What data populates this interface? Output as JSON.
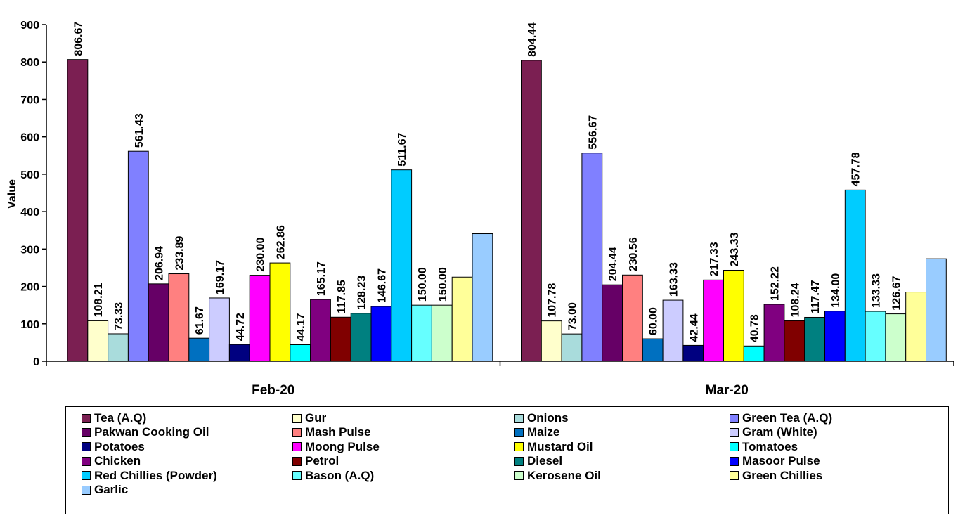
{
  "chart_data": {
    "type": "bar",
    "title": "",
    "ylabel": "Value",
    "xlabel": "",
    "ylim": [
      0,
      900
    ],
    "yticks": [
      "0",
      "100",
      "200",
      "300",
      "400",
      "500",
      "600",
      "700",
      "800",
      "900"
    ],
    "categories": [
      "Feb-20",
      "Mar-20"
    ],
    "legend_position": "bottom",
    "series": [
      {
        "name": "Tea (A.Q)",
        "color": "#7B1F52",
        "values": [
          806.67,
          804.44
        ],
        "labels": [
          "806.67",
          "804.44"
        ]
      },
      {
        "name": "Gur",
        "color": "#FFFFCC",
        "values": [
          108.21,
          107.78
        ],
        "labels": [
          "108.21",
          "107.78"
        ]
      },
      {
        "name": "Onions",
        "color": "#A9DCDC",
        "values": [
          73.33,
          73.0
        ],
        "labels": [
          "73.33",
          "73.00"
        ]
      },
      {
        "name": "Green Tea (A.Q)",
        "color": "#8080FF",
        "values": [
          561.43,
          556.67
        ],
        "labels": [
          "561.43",
          "556.67"
        ]
      },
      {
        "name": "Pakwan Cooking Oil",
        "color": "#660066",
        "values": [
          206.94,
          204.44
        ],
        "labels": [
          "206.94",
          "204.44"
        ]
      },
      {
        "name": "Mash Pulse",
        "color": "#FF8080",
        "values": [
          233.89,
          230.56
        ],
        "labels": [
          "233.89",
          "230.56"
        ]
      },
      {
        "name": "Maize",
        "color": "#0070C0",
        "values": [
          61.67,
          60.0
        ],
        "labels": [
          "61.67",
          "60.00"
        ]
      },
      {
        "name": "Gram (White)",
        "color": "#CCCCFF",
        "values": [
          169.17,
          163.33
        ],
        "labels": [
          "169.17",
          "163.33"
        ]
      },
      {
        "name": "Potatoes",
        "color": "#000080",
        "values": [
          44.72,
          42.44
        ],
        "labels": [
          "44.72",
          "42.44"
        ]
      },
      {
        "name": "Moong Pulse",
        "color": "#FF00FF",
        "values": [
          230.0,
          217.33
        ],
        "labels": [
          "230.00",
          "217.33"
        ]
      },
      {
        "name": "Mustard Oil",
        "color": "#FFFF00",
        "values": [
          262.86,
          243.33
        ],
        "labels": [
          "262.86",
          "243.33"
        ]
      },
      {
        "name": "Tomatoes",
        "color": "#00FFFF",
        "values": [
          44.17,
          40.78
        ],
        "labels": [
          "44.17",
          "40.78"
        ]
      },
      {
        "name": "Chicken",
        "color": "#800080",
        "values": [
          165.17,
          152.22
        ],
        "labels": [
          "165.17",
          "152.22"
        ]
      },
      {
        "name": "Petrol",
        "color": "#800000",
        "values": [
          117.85,
          108.24
        ],
        "labels": [
          "117.85",
          "108.24"
        ]
      },
      {
        "name": "Diesel",
        "color": "#008080",
        "values": [
          128.23,
          117.47
        ],
        "labels": [
          "128.23",
          "117.47"
        ]
      },
      {
        "name": "Masoor Pulse",
        "color": "#0000FF",
        "values": [
          146.67,
          134.0
        ],
        "labels": [
          "146.67",
          "134.00"
        ]
      },
      {
        "name": "Red Chillies (Powder)",
        "color": "#00CCFF",
        "values": [
          511.67,
          457.78
        ],
        "labels": [
          "511.67",
          "457.78"
        ]
      },
      {
        "name": "Bason (A.Q)",
        "color": "#66FFFF",
        "values": [
          150.0,
          133.33
        ],
        "labels": [
          "150.00",
          "133.33"
        ]
      },
      {
        "name": "Kerosene Oil",
        "color": "#CCFFCC",
        "values": [
          150.0,
          126.67
        ],
        "labels": [
          "150.00",
          "126.67"
        ]
      },
      {
        "name": "Green Chillies",
        "color": "#FFFF99",
        "values": [
          225,
          185
        ],
        "labels": [
          "",
          ""
        ]
      },
      {
        "name": "Garlic",
        "color": "#99CCFF",
        "values": [
          341,
          274
        ],
        "labels": [
          "",
          ""
        ]
      }
    ]
  }
}
